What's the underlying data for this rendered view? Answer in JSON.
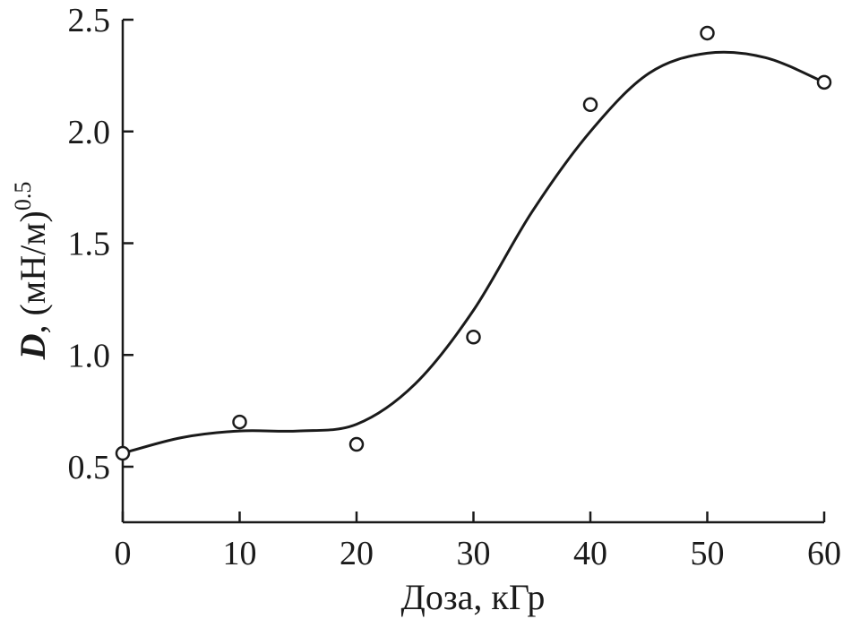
{
  "chart_data": {
    "type": "scatter",
    "xlabel": "Доза, кГр",
    "ylabel": {
      "symbol": "D",
      "rest": ", (мН/м)",
      "exponent": "0.5"
    },
    "xlim": [
      0,
      60
    ],
    "ylim": [
      0.25,
      2.5
    ],
    "xticks": [
      0,
      10,
      20,
      30,
      40,
      50,
      60
    ],
    "yticks": [
      0.5,
      1.0,
      1.5,
      2.0,
      2.5
    ],
    "ytick_labels": [
      "0.5",
      "1.0",
      "1.5",
      "2.0",
      "2.5"
    ],
    "grid": false,
    "series": [
      {
        "kind": "points",
        "marker": "open-circle",
        "x": [
          0,
          10,
          20,
          30,
          40,
          50,
          60
        ],
        "y": [
          0.56,
          0.7,
          0.6,
          1.08,
          2.12,
          2.44,
          2.22
        ]
      },
      {
        "kind": "smooth-fit-line",
        "x": [
          0,
          5,
          10,
          15,
          20,
          25,
          30,
          35,
          40,
          45,
          50,
          55,
          60
        ],
        "y": [
          0.56,
          0.63,
          0.66,
          0.66,
          0.69,
          0.87,
          1.2,
          1.64,
          2.0,
          2.26,
          2.35,
          2.33,
          2.22
        ]
      }
    ]
  }
}
